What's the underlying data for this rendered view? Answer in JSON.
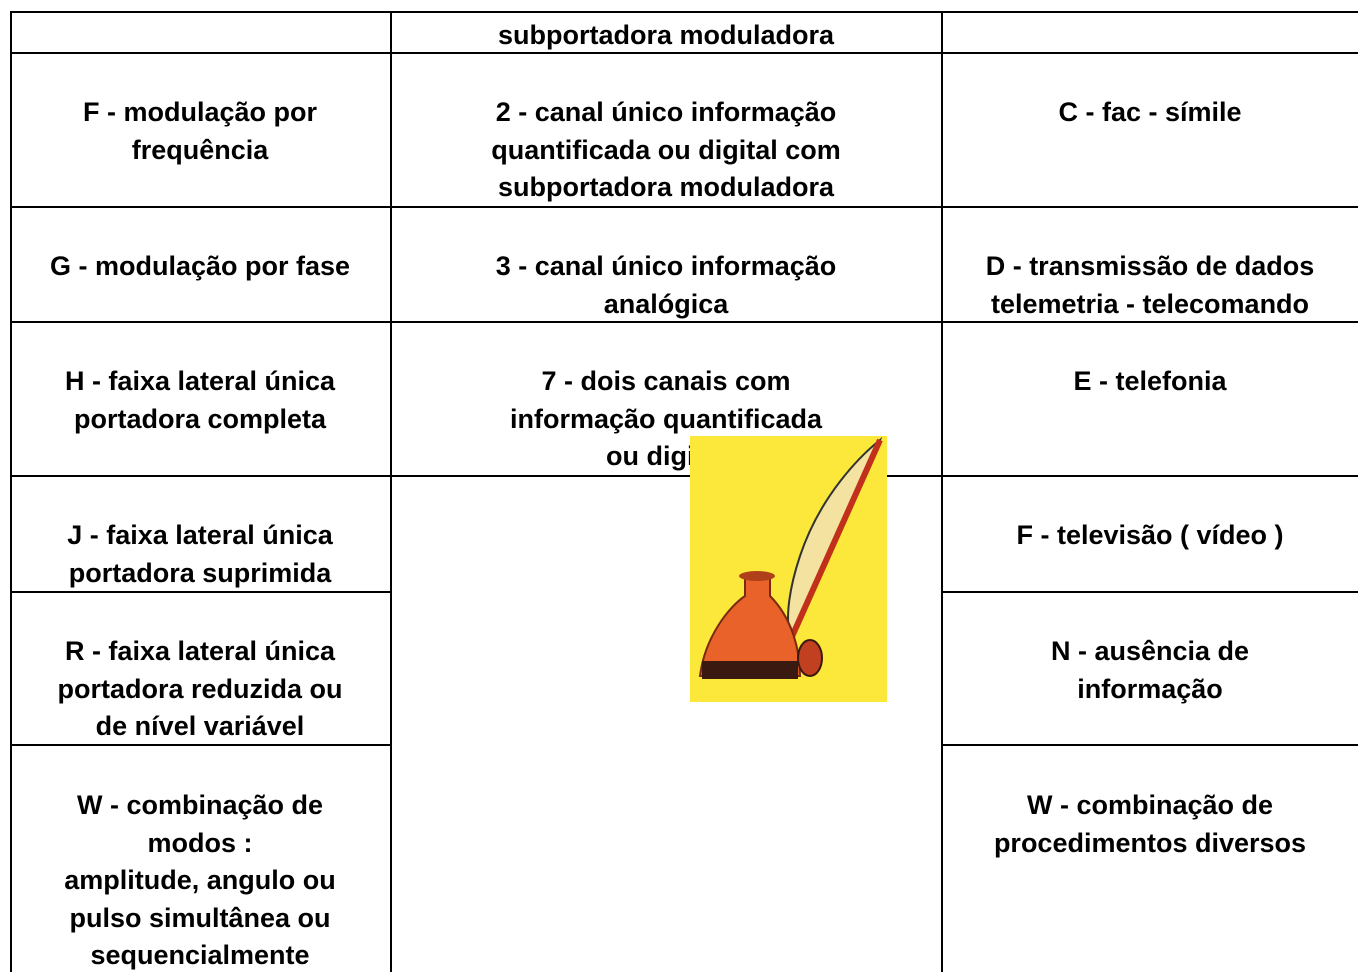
{
  "table": {
    "left": [
      "F - modulação por\nfrequência",
      "G - modulação por fase",
      "H - faixa lateral única\nportadora completa",
      "J -  faixa lateral única\nportadora suprimida",
      "R -  faixa lateral única\nportadora reduzida ou\nde nível variável",
      "W - combinação de\nmodos :\namplitude, angulo ou\npulso simultânea ou\nsequencialmente"
    ],
    "middle": [
      "subportadora   moduladora",
      "2 - canal único informação\nquantificada  ou digital com\nsubportadora moduladora",
      "3 - canal único informação\nanalógica",
      "7 - dois canais com\ninformação quantificada\nou digital"
    ],
    "right": [
      "C - fac - símile",
      "D - transmissão de dados\ntelemetria - telecomando",
      "E - telefonia",
      "F - televisão ( vídeo )",
      "N - ausência de\ninformação",
      "W - combinação de\nprocedimentos diversos"
    ]
  }
}
